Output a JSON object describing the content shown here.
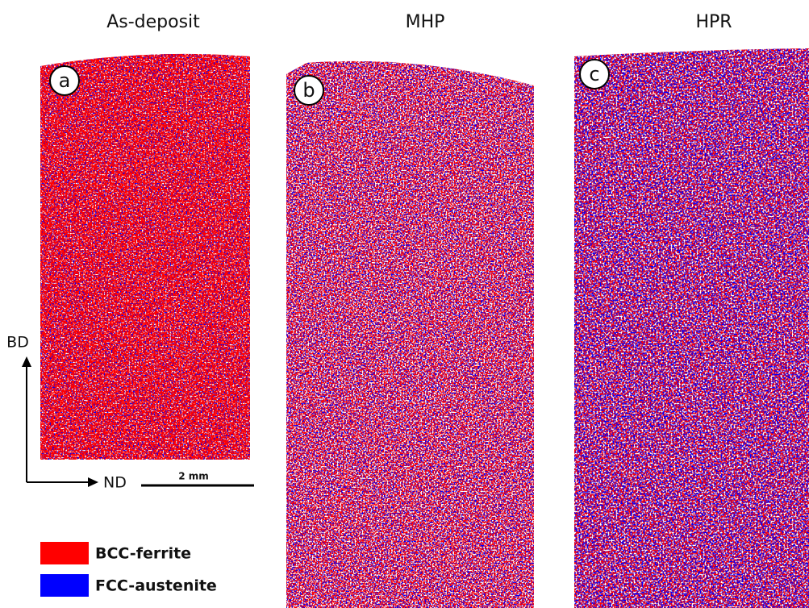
{
  "panels": [
    {
      "title": "As-deposit",
      "label": "a"
    },
    {
      "title": "MHP",
      "label": "b"
    },
    {
      "title": "HPR",
      "label": "c"
    }
  ],
  "axes": {
    "vertical": "BD",
    "horizontal": "ND"
  },
  "scale_bar": "2 mm",
  "legend": [
    {
      "label": "BCC-ferrite",
      "color": "#ff0000"
    },
    {
      "label": "FCC-austenite",
      "color": "#0000ff"
    }
  ]
}
